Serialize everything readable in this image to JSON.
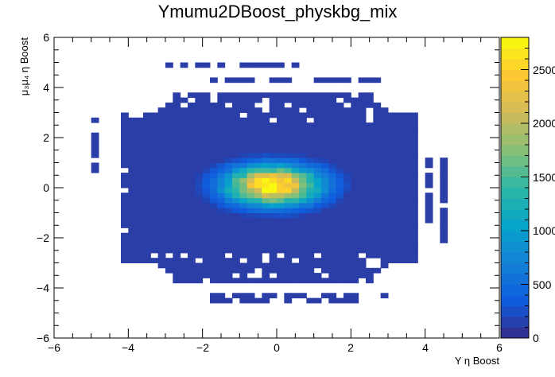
{
  "chart_data": {
    "type": "heatmap",
    "title": "Ymumu2DBoost_physkbg_mix",
    "xlabel": "Υ η Boost",
    "ylabel": "μ₃μ₄ η Boost",
    "xlim": [
      -6,
      6
    ],
    "ylim": [
      -6,
      6
    ],
    "zlim": [
      0,
      2800
    ],
    "x_ticks": [
      "−6",
      "−4",
      "−2",
      "0",
      "2",
      "4",
      "6"
    ],
    "y_ticks": [
      "−6",
      "−4",
      "−2",
      "0",
      "2",
      "4",
      "6"
    ],
    "z_ticks": [
      "0",
      "500",
      "1000",
      "1500",
      "2000",
      "2500"
    ],
    "peak": {
      "x": -0.1,
      "y": 0.1,
      "value": 2800
    },
    "bin_width": 0.2,
    "spread": {
      "x_sigma": 0.9,
      "y_sigma": 0.55
    },
    "grid": false,
    "legend": "right color bar",
    "colormap": [
      "#352a87",
      "#0f5cdd",
      "#1481d6",
      "#06a4ca",
      "#2eb7a4",
      "#87bf77",
      "#d1bb59",
      "#fec832",
      "#f9fb0e"
    ],
    "colors": {
      "occupied_bin": "#2b3ea8",
      "background": "#ffffff"
    },
    "regions": [
      {
        "name": "core",
        "y_range": [
          -3.8,
          3.8
        ],
        "x_half_width_at_0": 3.6
      },
      {
        "name": "top_strips",
        "y_values": [
          4.9,
          4.3
        ],
        "x_range": [
          -4.4,
          3.0
        ]
      },
      {
        "name": "bottom_strips",
        "y_values": [
          -4.3,
          -4.5
        ],
        "x_range": [
          -1.8,
          3.0
        ]
      },
      {
        "name": "left_columns",
        "x_values": [
          -4.9,
          -4.1
        ],
        "y_range": [
          -2.5,
          2.9
        ]
      },
      {
        "name": "right_columns",
        "x_values": [
          4.1,
          4.5
        ],
        "y_range": [
          -1.5,
          1.3
        ]
      }
    ]
  }
}
